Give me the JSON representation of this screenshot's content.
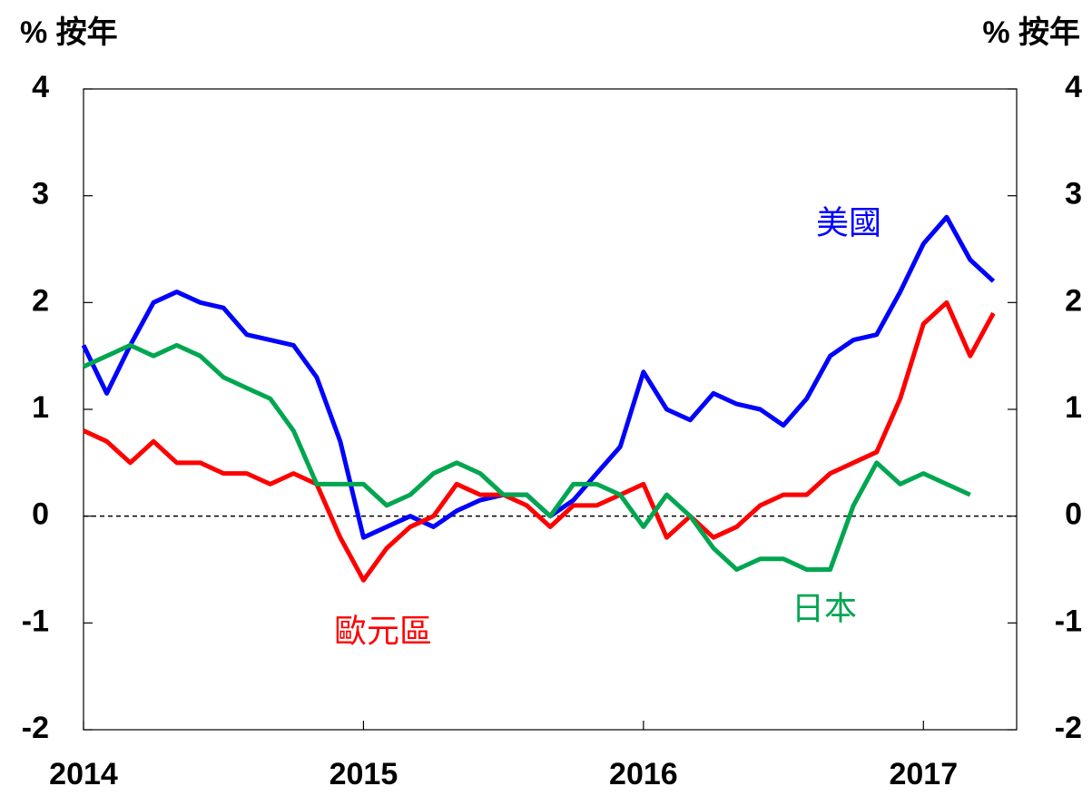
{
  "chart_data": {
    "type": "line",
    "y_label": "% 按年",
    "y2_label": "% 按年",
    "x": [
      2014,
      2014.083,
      2014.167,
      2014.25,
      2014.333,
      2014.417,
      2014.5,
      2014.583,
      2014.667,
      2014.75,
      2014.833,
      2014.917,
      2015,
      2015.083,
      2015.167,
      2015.25,
      2015.333,
      2015.417,
      2015.5,
      2015.583,
      2015.667,
      2015.75,
      2015.833,
      2015.917,
      2016,
      2016.083,
      2016.167,
      2016.25,
      2016.333,
      2016.417,
      2016.5,
      2016.583,
      2016.667,
      2016.75,
      2016.833,
      2016.917,
      2017,
      2017.083,
      2017.167,
      2017.25
    ],
    "series": [
      {
        "name": "美國",
        "color": "#0000ff",
        "values": [
          1.6,
          1.15,
          1.6,
          2.0,
          2.1,
          2.0,
          1.95,
          1.7,
          1.65,
          1.6,
          1.3,
          0.7,
          -0.2,
          -0.1,
          0.0,
          -0.1,
          0.05,
          0.15,
          0.2,
          0.2,
          0.0,
          0.15,
          0.4,
          0.65,
          1.35,
          1.0,
          0.9,
          1.15,
          1.05,
          1.0,
          0.85,
          1.1,
          1.5,
          1.65,
          1.7,
          2.1,
          2.55,
          2.8,
          2.4,
          2.2
        ]
      },
      {
        "name": "歐元區",
        "color": "#ff0000",
        "values": [
          0.8,
          0.7,
          0.5,
          0.7,
          0.5,
          0.5,
          0.4,
          0.4,
          0.3,
          0.4,
          0.3,
          -0.2,
          -0.6,
          -0.3,
          -0.1,
          0.0,
          0.3,
          0.2,
          0.2,
          0.1,
          -0.1,
          0.1,
          0.1,
          0.2,
          0.3,
          -0.2,
          0.0,
          -0.2,
          -0.1,
          0.1,
          0.2,
          0.2,
          0.4,
          0.5,
          0.6,
          1.1,
          1.8,
          2.0,
          1.5,
          1.9
        ]
      },
      {
        "name": "日本",
        "color": "#00a650",
        "values": [
          1.4,
          1.5,
          1.6,
          1.5,
          1.6,
          1.5,
          1.3,
          1.2,
          1.1,
          0.8,
          0.3,
          0.3,
          0.3,
          0.1,
          0.2,
          0.4,
          0.5,
          0.4,
          0.2,
          0.2,
          0.0,
          0.3,
          0.3,
          0.2,
          -0.1,
          0.2,
          0.0,
          -0.3,
          -0.5,
          -0.4,
          -0.4,
          -0.5,
          -0.5,
          0.1,
          0.5,
          0.3,
          0.4,
          0.3,
          0.2,
          null
        ]
      }
    ],
    "xlim": [
      2014,
      2017.333
    ],
    "xticks": [
      2014,
      2015,
      2016,
      2017
    ],
    "ylim": [
      -2,
      4
    ],
    "yticks": [
      -2,
      -1,
      0,
      1,
      2,
      3,
      4
    ],
    "y2lim": [
      -2,
      4
    ],
    "y2ticks": [
      -2,
      -1,
      0,
      1,
      2,
      3,
      4
    ]
  }
}
